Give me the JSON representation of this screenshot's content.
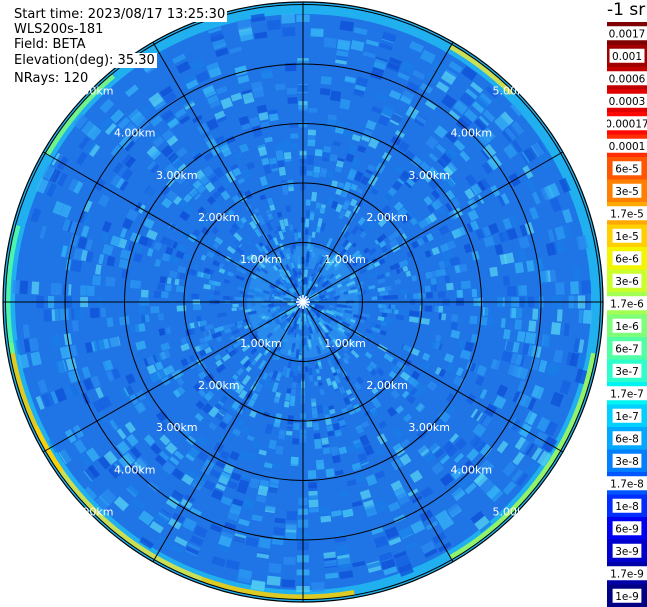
{
  "header": {
    "start_time": "Start time: 2023/08/17 13:25:30",
    "instrument": "WLS200s-181",
    "field": "Field: BETA",
    "elevation": "Elevation(deg): 35.30",
    "nrays": "NRays: 120"
  },
  "colorbar": {
    "title": "-1 sr",
    "labels": [
      "0.0017",
      "0.001",
      "0.0006",
      "0.0003",
      "0.00017",
      "0.0001",
      "6e-5",
      "3e-5",
      "1.7e-5",
      "1e-5",
      "6e-6",
      "3e-6",
      "1.7e-6",
      "1e-6",
      "6e-7",
      "3e-7",
      "1.7e-7",
      "1e-7",
      "6e-8",
      "3e-8",
      "1.7e-8",
      "1e-8",
      "6e-9",
      "3e-9",
      "1.7e-9",
      "1e-9"
    ],
    "colors": [
      "#7f0000",
      "#a00000",
      "#c20000",
      "#e30000",
      "#ff0800",
      "#ff2e00",
      "#ff5700",
      "#ff7f00",
      "#ffa800",
      "#ffd000",
      "#f2f400",
      "#cbff2c",
      "#a4ff53",
      "#7dff7a",
      "#53ffa4",
      "#2cffcb",
      "#00f4f2",
      "#00d0ff",
      "#00a8ff",
      "#007fff",
      "#0057ff",
      "#002eff",
      "#0000f1",
      "#0000cd",
      "#0000a8",
      "#000084"
    ]
  },
  "chart_data": {
    "type": "polar-ppi",
    "title": "",
    "field": "BETA",
    "units": "-1 sr",
    "nrays": 120,
    "range_rings_km": [
      1,
      2,
      3,
      4,
      5
    ],
    "ring_labels": [
      "1.00km",
      "2.00km",
      "3.00km",
      "4.00km",
      "5.00km"
    ],
    "radial_lines_deg": [
      0,
      30,
      60,
      90,
      120,
      150,
      180,
      210,
      240,
      270,
      300,
      330
    ],
    "max_range_km": 5.8,
    "value_range": [
      1e-09,
      0.0017
    ],
    "log_scale": true,
    "radial_profile": [
      {
        "range_km": 0.0,
        "beta": 3e-08
      },
      {
        "range_km": 0.5,
        "beta": 1.5e-08
      },
      {
        "range_km": 1.0,
        "beta": 2e-08
      },
      {
        "range_km": 1.5,
        "beta": 2.5e-08
      },
      {
        "range_km": 2.0,
        "beta": 2e-08
      },
      {
        "range_km": 3.0,
        "beta": 2e-08
      },
      {
        "range_km": 4.0,
        "beta": 2.5e-08
      },
      {
        "range_km": 5.0,
        "beta": 3e-08
      },
      {
        "range_km": 5.5,
        "beta": 1e-06
      }
    ]
  }
}
